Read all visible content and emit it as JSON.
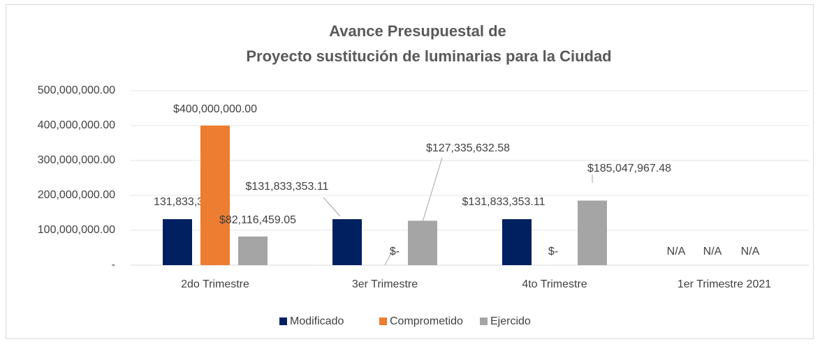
{
  "chart_data": {
    "type": "bar",
    "title": [
      "Avance Presupuestal de",
      "Proyecto sustitución de luminarias para la Ciudad"
    ],
    "categories": [
      "2do Trimestre",
      "3er Trimestre",
      "4to Trimestre",
      "1er Trimestre 2021"
    ],
    "series": [
      {
        "name": "Modificado",
        "color": "#002060",
        "values": [
          131833353.11,
          131833353.11,
          131833353.11,
          null
        ],
        "value_labels": [
          "131,833,353.11",
          "$131,833,353.11",
          "$131,833,353.11",
          "N/A"
        ]
      },
      {
        "name": "Comprometido",
        "color": "#ed7d31",
        "values": [
          400000000,
          0,
          0,
          null
        ],
        "value_labels": [
          "$400,000,000.00",
          "$-",
          "$-",
          "N/A"
        ]
      },
      {
        "name": "Ejercido",
        "color": "#a5a5a5",
        "values": [
          82116459.05,
          127335632.58,
          185047967.48,
          null
        ],
        "value_labels": [
          "$82,116,459.05",
          "$127,335,632.58",
          "$185,047,967.48",
          "N/A"
        ]
      }
    ],
    "ylim": [
      0,
      500000000
    ],
    "yticks": [
      {
        "value": 0,
        "label": "-"
      },
      {
        "value": 100000000,
        "label": "100,000,000.00"
      },
      {
        "value": 200000000,
        "label": "200,000,000.00"
      },
      {
        "value": 300000000,
        "label": "300,000,000.00"
      },
      {
        "value": 400000000,
        "label": "400,000,000.00"
      },
      {
        "value": 500000000,
        "label": "500,000,000.00"
      }
    ],
    "grid": true,
    "legend": "bottom"
  }
}
